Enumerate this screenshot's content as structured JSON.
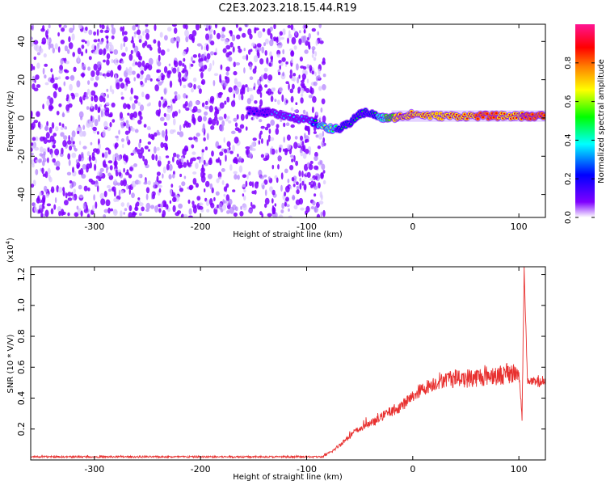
{
  "figure": {
    "title": "C2E3.2023.218.15.44.R19"
  },
  "chart_data": [
    {
      "type": "heatmap",
      "xlabel": "Height of straight line (km)",
      "ylabel": "Frequency (Hz)",
      "xlim": [
        -360,
        125
      ],
      "ylim": [
        -52,
        49
      ],
      "xticks": [
        -300,
        -200,
        -100,
        0,
        100
      ],
      "yticks": [
        -40,
        -20,
        0,
        20,
        40
      ],
      "colorbar": {
        "label": "Normalized spectral amplitude",
        "range": [
          0,
          1
        ],
        "ticks": [
          0.0,
          0.2,
          0.4,
          0.6,
          0.8
        ],
        "colors": [
          "#ffffff",
          "#7f00ff",
          "#0000ff",
          "#00ffff",
          "#00ff00",
          "#ffff00",
          "#ff8000",
          "#ff0000",
          "#ff1493"
        ]
      },
      "noise_region": {
        "x_range": [
          -360,
          -83
        ],
        "freq_range": [
          -52,
          49
        ],
        "typical_amplitude": 0.15
      },
      "signal_track": [
        {
          "x": -155,
          "freq": 4,
          "amplitude": 0.25
        },
        {
          "x": -140,
          "freq": 3,
          "amplitude": 0.25
        },
        {
          "x": -125,
          "freq": 2,
          "amplitude": 0.3
        },
        {
          "x": -110,
          "freq": 0,
          "amplitude": 0.3
        },
        {
          "x": -95,
          "freq": -2,
          "amplitude": 0.35
        },
        {
          "x": -82,
          "freq": -5,
          "amplitude": 0.6
        },
        {
          "x": -70,
          "freq": -6,
          "amplitude": 0.45
        },
        {
          "x": -60,
          "freq": -3,
          "amplitude": 0.4
        },
        {
          "x": -50,
          "freq": 2,
          "amplitude": 0.4
        },
        {
          "x": -42,
          "freq": 3,
          "amplitude": 0.4
        },
        {
          "x": -30,
          "freq": 0,
          "amplitude": 0.5
        },
        {
          "x": -20,
          "freq": 0,
          "amplitude": 0.7
        },
        {
          "x": -10,
          "freq": 1,
          "amplitude": 0.8
        },
        {
          "x": 0,
          "freq": 2,
          "amplitude": 0.85
        },
        {
          "x": 20,
          "freq": 1,
          "amplitude": 0.75
        },
        {
          "x": 40,
          "freq": 1,
          "amplitude": 0.8
        },
        {
          "x": 60,
          "freq": 1,
          "amplitude": 0.85
        },
        {
          "x": 80,
          "freq": 1,
          "amplitude": 0.85
        },
        {
          "x": 100,
          "freq": 1,
          "amplitude": 0.8
        },
        {
          "x": 110,
          "freq": 1,
          "amplitude": 0.95
        },
        {
          "x": 125,
          "freq": 1,
          "amplitude": 0.95
        }
      ]
    },
    {
      "type": "line",
      "xlabel": "Height of straight line (km)",
      "ylabel": "SNR (10 * V/V)",
      "yscale_label": "(x10",
      "yscale_exp": "4",
      "yscale_close": ")",
      "xlim": [
        -360,
        125
      ],
      "ylim": [
        0,
        1.25
      ],
      "xticks": [
        -300,
        -200,
        -100,
        0,
        100
      ],
      "yticks": [
        0.2,
        0.4,
        0.6,
        0.8,
        1.0,
        1.2
      ],
      "color": "#e8302f",
      "series": [
        {
          "x": [
            -360,
            -300,
            -200,
            -110,
            -85,
            -75,
            -65,
            -55,
            -45,
            -35,
            -25,
            -15,
            -5,
            5,
            15,
            25,
            35,
            45,
            55,
            65,
            75,
            85,
            95,
            100,
            103,
            105,
            108,
            115,
            125
          ],
          "y": [
            0.02,
            0.02,
            0.02,
            0.02,
            0.02,
            0.06,
            0.12,
            0.18,
            0.22,
            0.25,
            0.3,
            0.33,
            0.38,
            0.44,
            0.48,
            0.51,
            0.53,
            0.53,
            0.53,
            0.54,
            0.55,
            0.55,
            0.56,
            0.56,
            0.28,
            1.25,
            0.52,
            0.5,
            0.5
          ]
        }
      ]
    }
  ]
}
